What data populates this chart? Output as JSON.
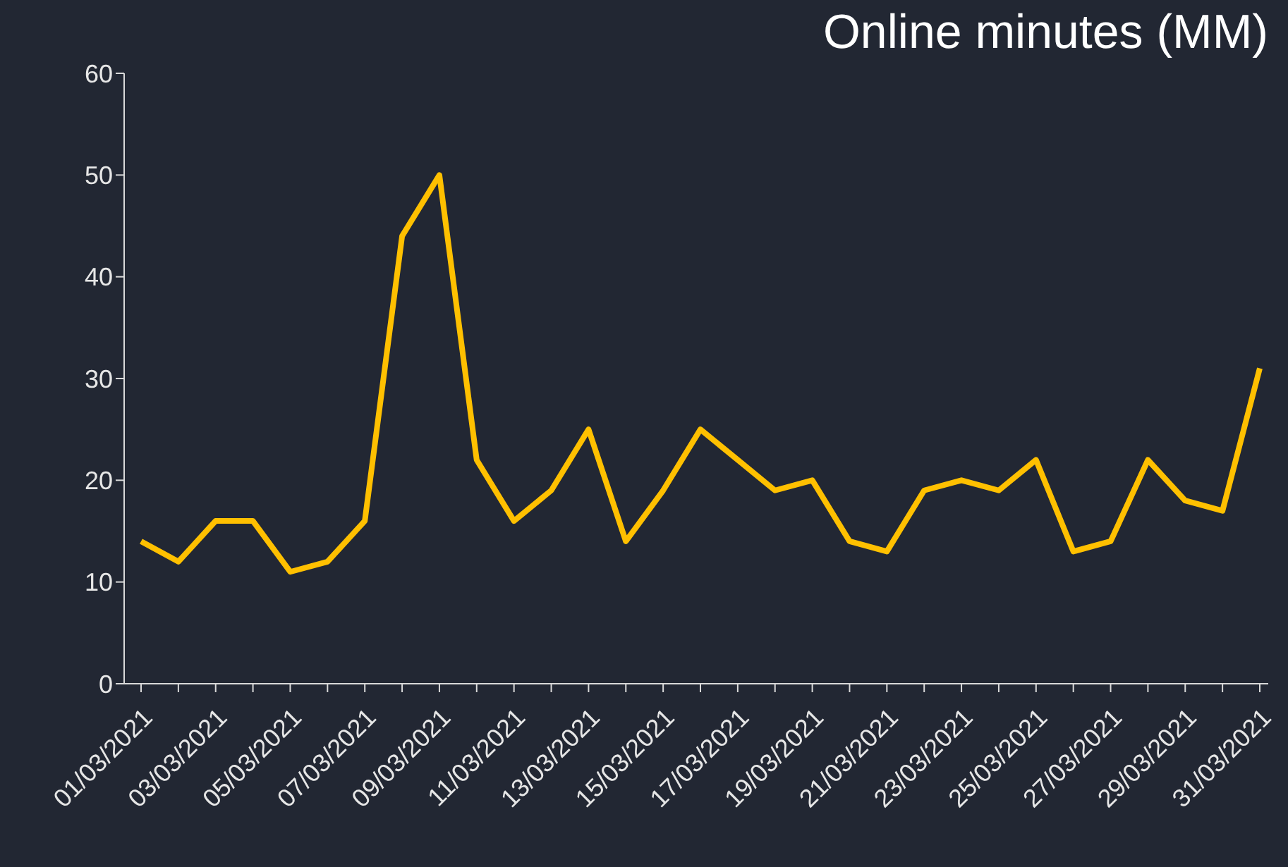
{
  "chart_data": {
    "type": "line",
    "title": "Online minutes (MM)",
    "categories": [
      "01/03/2021",
      null,
      "03/03/2021",
      null,
      "05/03/2021",
      null,
      "07/03/2021",
      null,
      "09/03/2021",
      null,
      "11/03/2021",
      null,
      "13/03/2021",
      null,
      "15/03/2021",
      null,
      "17/03/2021",
      null,
      "19/03/2021",
      null,
      "21/03/2021",
      null,
      "23/03/2021",
      null,
      "25/03/2021",
      null,
      "27/03/2021",
      null,
      "29/03/2021",
      null,
      "31/03/2021"
    ],
    "series": [
      {
        "color": "#ffc000",
        "values": [
          14,
          12,
          16,
          16,
          11,
          12,
          16,
          44,
          50,
          22,
          16,
          19,
          25,
          14,
          19,
          25,
          22,
          19,
          20,
          14,
          13,
          19,
          20,
          19,
          22,
          13,
          14,
          22,
          18,
          17,
          31
        ]
      }
    ],
    "ylim": [
      0,
      60
    ],
    "yticks": [
      0,
      10,
      20,
      30,
      40,
      50,
      60
    ],
    "marker": "none",
    "line_style": "solid"
  }
}
